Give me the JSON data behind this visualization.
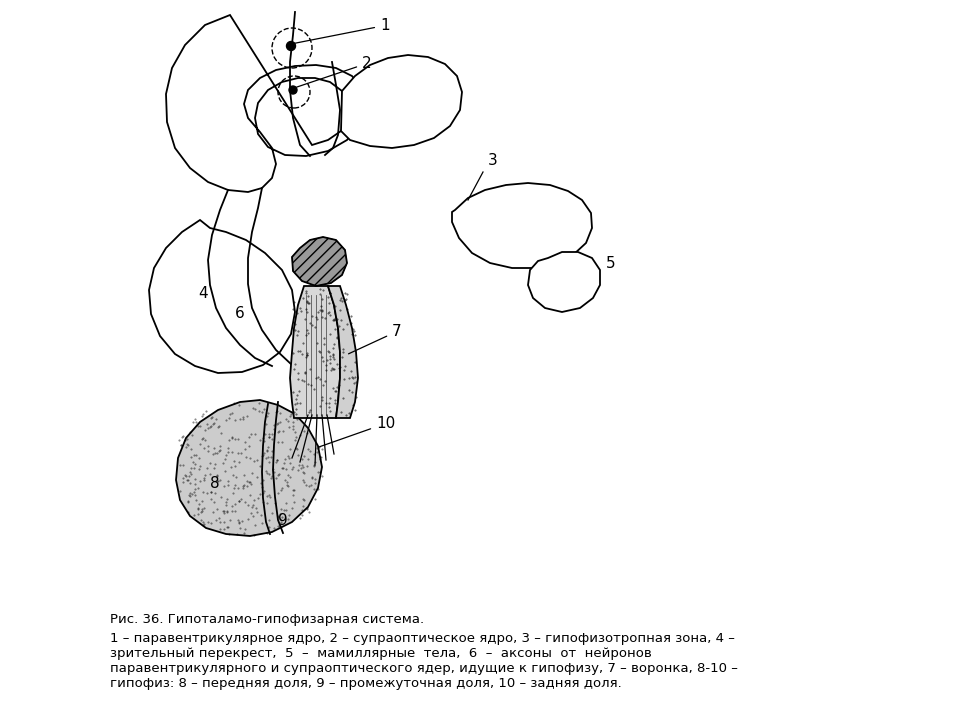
{
  "background_color": "#ffffff",
  "caption_title": "Рис. 36. Гипоталамо-гипофизарная система.",
  "caption_text": "1 – паравентрикулярное ядро, 2 – супраоптическое ядро, 3 – гипофизотропная зона, 4 –\nзрительный перекрест,  5  –  мамиллярные  тела,  6  –  аксоны  от  нейронов\nпаравентрикулярного и супраоптического ядер, идущие к гипофизу, 7 – воронка, 8-10 –\nгипофиз: 8 – передняя доля, 9 – промежуточная доля, 10 – задняя доля.",
  "line_color": "#000000"
}
